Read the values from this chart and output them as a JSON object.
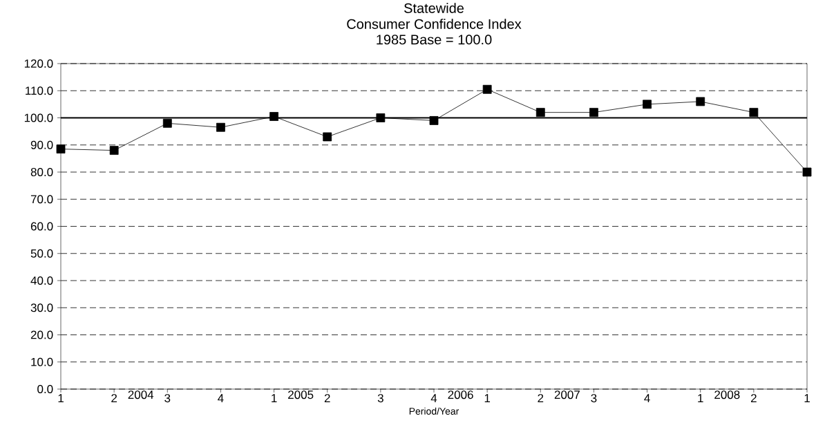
{
  "chart_data": {
    "type": "line",
    "title": "Statewide",
    "subtitle": "Consumer Confidence Index",
    "xlabel": "Period/Year",
    "categories": [
      "1",
      "2",
      "3",
      "4",
      "1",
      "2",
      "3",
      "4",
      "1",
      "2",
      "3",
      "4",
      "1",
      "2",
      "1"
    ],
    "series": [
      {
        "color": "#000000",
        "values": [
          88.5,
          88.0,
          98.0,
          96.5,
          100.5,
          93.0,
          100.0,
          99.0,
          110.5,
          102.0,
          102.0,
          105.0,
          106.0,
          102.0,
          80.0
        ]
      }
    ],
    "ylim": [
      0,
      120
    ],
    "yticks": [
      {
        "value": 0,
        "label": "0.0"
      },
      {
        "value": 10,
        "label": "10.0"
      },
      {
        "value": 20,
        "label": "20.0"
      },
      {
        "value": 30,
        "label": "30.0"
      },
      {
        "value": 40,
        "label": "40.0"
      },
      {
        "value": 50,
        "label": "50.0"
      },
      {
        "value": 60,
        "label": "60.0"
      },
      {
        "value": 70,
        "label": "70.0"
      },
      {
        "value": 80,
        "label": "80.0"
      },
      {
        "value": 90,
        "label": "90.0"
      },
      {
        "value": 100,
        "label": "100.0"
      },
      {
        "value": 110,
        "label": "110.0"
      },
      {
        "value": 120,
        "label": "120.0"
      }
    ],
    "ref_lines": [
      {
        "axis": "y",
        "value": 100,
        "color": "#000000",
        "line_style": "solid"
      }
    ],
    "annotations": [
      "1985 Base = 100.0",
      "2004",
      "2005",
      "2006",
      "2007",
      "2008"
    ],
    "grid": "y",
    "marker": "square",
    "line_style": "solid"
  }
}
